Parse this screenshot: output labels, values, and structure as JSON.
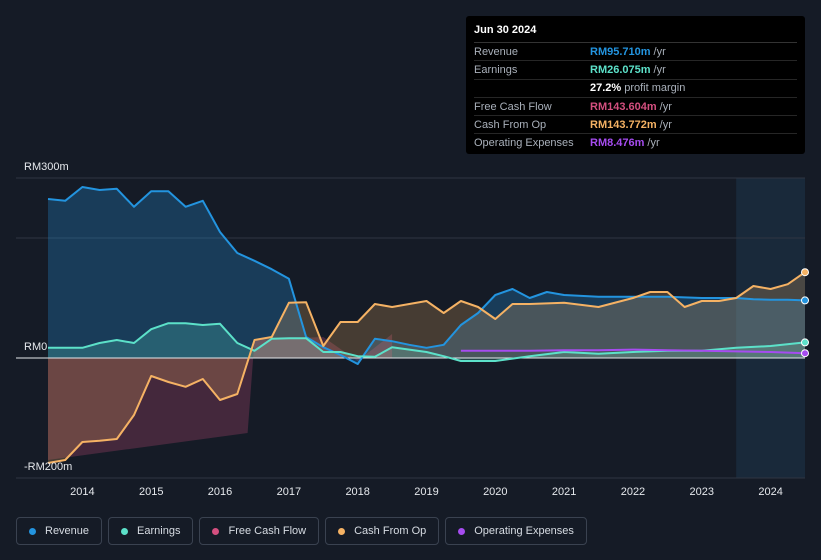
{
  "tooltip": {
    "date": "Jun 30 2024",
    "rows": [
      {
        "label": "Revenue",
        "value": "RM95.710m",
        "unit": "/yr",
        "color": "#2394df"
      },
      {
        "label": "Earnings",
        "value": "RM26.075m",
        "unit": "/yr",
        "color": "#5ce1c9"
      },
      {
        "label": "",
        "value": "27.2%",
        "unit": "profit margin",
        "color": "#ffffff"
      },
      {
        "label": "Free Cash Flow",
        "value": "RM143.604m",
        "unit": "/yr",
        "color": "#d44f7f"
      },
      {
        "label": "Cash From Op",
        "value": "RM143.772m",
        "unit": "/yr",
        "color": "#f5b264"
      },
      {
        "label": "Operating Expenses",
        "value": "RM8.476m",
        "unit": "/yr",
        "color": "#a64cf0"
      }
    ]
  },
  "chart_data": {
    "type": "area",
    "ylim": [
      -200,
      300
    ],
    "xlim": [
      2013.5,
      2024.5
    ],
    "y_tick_labels": [
      {
        "value": 300,
        "label": "RM300m"
      },
      {
        "value": 0,
        "label": "RM0"
      },
      {
        "value": -200,
        "label": "-RM200m"
      }
    ],
    "x_tick_labels": [
      "2014",
      "2015",
      "2016",
      "2017",
      "2018",
      "2019",
      "2020",
      "2021",
      "2022",
      "2023",
      "2024"
    ],
    "x_tick_values": [
      2014,
      2015,
      2016,
      2017,
      2018,
      2019,
      2020,
      2021,
      2022,
      2023,
      2024
    ],
    "forecast_start": 2023.5,
    "series": [
      {
        "name": "Revenue",
        "color": "#2394df",
        "x": [
          2013.5,
          2013.75,
          2014.0,
          2014.25,
          2014.5,
          2014.75,
          2015.0,
          2015.25,
          2015.5,
          2015.75,
          2016.0,
          2016.25,
          2016.5,
          2016.75,
          2017.0,
          2017.25,
          2017.5,
          2017.75,
          2018.0,
          2018.25,
          2018.5,
          2018.75,
          2019.0,
          2019.25,
          2019.5,
          2019.75,
          2020.0,
          2020.25,
          2020.5,
          2020.75,
          2021.0,
          2021.5,
          2022.0,
          2022.5,
          2023.0,
          2023.5,
          2023.75,
          2024.0,
          2024.25,
          2024.5
        ],
        "values": [
          265,
          262,
          285,
          280,
          282,
          252,
          278,
          278,
          252,
          262,
          210,
          175,
          162,
          148,
          132,
          35,
          18,
          5,
          -10,
          32,
          28,
          22,
          17,
          22,
          55,
          75,
          105,
          115,
          100,
          110,
          105,
          102,
          102,
          102,
          100,
          100,
          98,
          97,
          97,
          96
        ]
      },
      {
        "name": "Earnings",
        "color": "#5ce1c9",
        "x": [
          2013.5,
          2014.0,
          2014.25,
          2014.5,
          2014.75,
          2015.0,
          2015.25,
          2015.5,
          2015.75,
          2016.0,
          2016.25,
          2016.5,
          2016.75,
          2017.0,
          2017.25,
          2017.5,
          2017.75,
          2018.0,
          2018.25,
          2018.5,
          2019.0,
          2019.25,
          2019.5,
          2019.75,
          2020.0,
          2020.5,
          2021.0,
          2021.5,
          2022.0,
          2022.5,
          2023.0,
          2023.5,
          2024.0,
          2024.5
        ],
        "values": [
          17,
          17,
          25,
          30,
          25,
          48,
          58,
          58,
          55,
          57,
          25,
          12,
          32,
          33,
          33,
          10,
          10,
          3,
          2,
          18,
          10,
          3,
          -5,
          -5,
          -5,
          3,
          10,
          7,
          10,
          12,
          12,
          17,
          20,
          26
        ]
      },
      {
        "name": "Free Cash Flow",
        "color": "#d44f7f",
        "x": [
          2013.5,
          2016.4,
          2016.5,
          2017.5,
          2018.0,
          2018.5
        ],
        "values": [
          -170,
          -125,
          30,
          35,
          -5,
          40
        ]
      },
      {
        "name": "Cash From Op",
        "color": "#f5b264",
        "x": [
          2013.5,
          2013.75,
          2014.0,
          2014.25,
          2014.5,
          2014.75,
          2015.0,
          2015.25,
          2015.5,
          2015.75,
          2016.0,
          2016.25,
          2016.5,
          2016.75,
          2017.0,
          2017.25,
          2017.5,
          2017.75,
          2018.0,
          2018.25,
          2018.5,
          2018.75,
          2019.0,
          2019.25,
          2019.5,
          2019.75,
          2020.0,
          2020.25,
          2020.5,
          2021.0,
          2021.5,
          2022.0,
          2022.25,
          2022.5,
          2022.75,
          2023.0,
          2023.25,
          2023.5,
          2023.75,
          2024.0,
          2024.25,
          2024.5
        ],
        "values": [
          -175,
          -170,
          -140,
          -138,
          -135,
          -95,
          -30,
          -40,
          -48,
          -35,
          -70,
          -60,
          30,
          35,
          92,
          93,
          20,
          60,
          60,
          90,
          85,
          90,
          95,
          75,
          95,
          85,
          65,
          90,
          90,
          92,
          85,
          100,
          110,
          110,
          85,
          95,
          95,
          100,
          120,
          115,
          123,
          143
        ]
      },
      {
        "name": "Operating Expenses",
        "color": "#a64cf0",
        "x": [
          2019.5,
          2020.0,
          2020.5,
          2021.0,
          2021.5,
          2022.0,
          2022.5,
          2023.0,
          2023.5,
          2024.0,
          2024.5
        ],
        "values": [
          12,
          12,
          12,
          13,
          13,
          14,
          13,
          12,
          11,
          10,
          8
        ]
      }
    ]
  },
  "legend": [
    {
      "label": "Revenue",
      "color": "#2394df"
    },
    {
      "label": "Earnings",
      "color": "#5ce1c9"
    },
    {
      "label": "Free Cash Flow",
      "color": "#d44f7f"
    },
    {
      "label": "Cash From Op",
      "color": "#f5b264"
    },
    {
      "label": "Operating Expenses",
      "color": "#a64cf0"
    }
  ]
}
